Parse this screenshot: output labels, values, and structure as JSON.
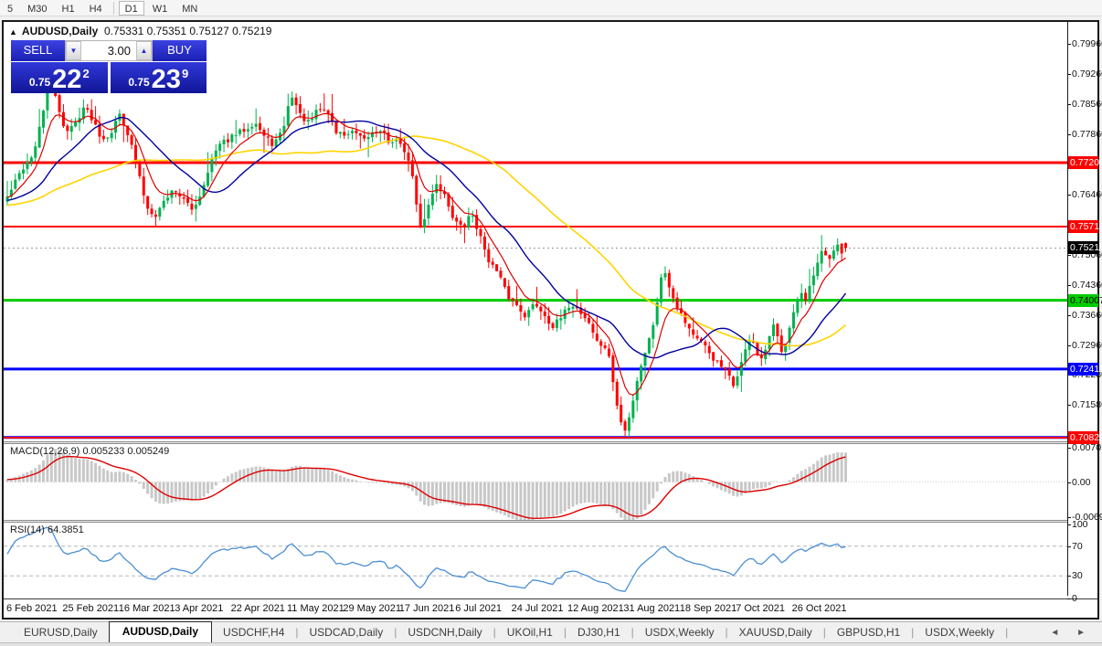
{
  "toolbar": {
    "timeframes": [
      {
        "label": "5",
        "active": false
      },
      {
        "label": "M30",
        "active": false
      },
      {
        "label": "H1",
        "active": false
      },
      {
        "label": "H4",
        "active": false
      },
      {
        "label": "D1",
        "active": true
      },
      {
        "label": "W1",
        "active": false
      },
      {
        "label": "MN",
        "active": false
      }
    ]
  },
  "chart_header": {
    "symbol": "AUDUSD,Daily",
    "ohlc": "0.75331 0.75351 0.75127 0.75219",
    "collapse_icon": "▲"
  },
  "trade_panel": {
    "sell_label": "SELL",
    "buy_label": "BUY",
    "volume": "3.00",
    "down_arrow": "▼",
    "up_arrow": "▲",
    "sell_price": {
      "small": "0.75",
      "big": "22",
      "sup": "2"
    },
    "buy_price": {
      "small": "0.75",
      "big": "23",
      "sup": "9"
    }
  },
  "chart_data": {
    "type": "candlestick",
    "title": "AUDUSD Daily",
    "colors": {
      "bull": "#00b14f",
      "bear": "#fe0000",
      "ma_fast": "#e00000",
      "ma_mid": "#0000a0",
      "ma_slow": "#ffd400",
      "macd_hist": "#c8c8c8",
      "macd_signal": "#dd0000",
      "rsi": "#4a8fd4"
    },
    "price_axis_range": [
      0.7042,
      0.8036
    ],
    "y_ticks": [
      "0.79960",
      "0.79260",
      "0.78560",
      "0.77860",
      "0.76460",
      "0.75060",
      "0.74360",
      "0.73660",
      "0.72960",
      "0.72280",
      "0.71580"
    ],
    "levels": [
      {
        "label": "0.77200",
        "price": 0.772,
        "color": "#ff0000",
        "text": "#ffffff",
        "lw": 3
      },
      {
        "label": "0.75716",
        "price": 0.75716,
        "color": "#ff0000",
        "text": "#ffffff",
        "lw": 2
      },
      {
        "label": "0.74007",
        "price": 0.74007,
        "color": "#00cc00",
        "text": "#000000",
        "lw": 3
      },
      {
        "label": "0.72411",
        "price": 0.72411,
        "color": "#0000ff",
        "text": "#ffffff",
        "lw": 3
      },
      {
        "label": "0.70826",
        "price": 0.70826,
        "color": "#0000ff",
        "text": "#ffffff",
        "lw": 3
      },
      {
        "label": "0.70820",
        "price": 0.7082,
        "color": "#ff0000",
        "text": "#ffffff",
        "lw": 2
      }
    ],
    "current_price": {
      "label": "0.75219",
      "price": 0.75219,
      "color": "#000000",
      "text": "#ffffff"
    },
    "last_candle": {
      "open": 0.75331,
      "high": 0.75351,
      "low": 0.75127,
      "close": 0.75219
    },
    "num_candles": 210,
    "price_waypoints_base": 186,
    "price_waypoints": [
      [
        0,
        0.764
      ],
      [
        3,
        0.77
      ],
      [
        6,
        0.7745
      ],
      [
        8,
        0.784
      ],
      [
        9,
        0.793
      ],
      [
        11,
        0.786
      ],
      [
        13,
        0.779
      ],
      [
        15,
        0.781
      ],
      [
        17,
        0.785
      ],
      [
        19,
        0.782
      ],
      [
        21,
        0.7775
      ],
      [
        23,
        0.779
      ],
      [
        25,
        0.7835
      ],
      [
        27,
        0.778
      ],
      [
        29,
        0.77
      ],
      [
        31,
        0.7615
      ],
      [
        33,
        0.76
      ],
      [
        35,
        0.7635
      ],
      [
        37,
        0.766
      ],
      [
        39,
        0.7635
      ],
      [
        41,
        0.761
      ],
      [
        43,
        0.765
      ],
      [
        45,
        0.772
      ],
      [
        47,
        0.776
      ],
      [
        50,
        0.778
      ],
      [
        53,
        0.78
      ],
      [
        55,
        0.7815
      ],
      [
        57,
        0.778
      ],
      [
        59,
        0.7762
      ],
      [
        61,
        0.779
      ],
      [
        63,
        0.788
      ],
      [
        65,
        0.783
      ],
      [
        67,
        0.781
      ],
      [
        69,
        0.7845
      ],
      [
        71,
        0.784
      ],
      [
        73,
        0.779
      ],
      [
        75,
        0.7785
      ],
      [
        77,
        0.779
      ],
      [
        79,
        0.7768
      ],
      [
        81,
        0.779
      ],
      [
        83,
        0.78
      ],
      [
        85,
        0.776
      ],
      [
        87,
        0.7775
      ],
      [
        89,
        0.772
      ],
      [
        90,
        0.769
      ],
      [
        91,
        0.7595
      ],
      [
        92,
        0.7565
      ],
      [
        94,
        0.764
      ],
      [
        95,
        0.7675
      ],
      [
        97,
        0.7645
      ],
      [
        99,
        0.759
      ],
      [
        101,
        0.7565
      ],
      [
        103,
        0.7605
      ],
      [
        105,
        0.7545
      ],
      [
        107,
        0.749
      ],
      [
        109,
        0.746
      ],
      [
        111,
        0.741
      ],
      [
        113,
        0.739
      ],
      [
        115,
        0.7365
      ],
      [
        117,
        0.7395
      ],
      [
        119,
        0.737
      ],
      [
        121,
        0.734
      ],
      [
        123,
        0.736
      ],
      [
        125,
        0.7395
      ],
      [
        127,
        0.7375
      ],
      [
        129,
        0.735
      ],
      [
        131,
        0.73
      ],
      [
        133,
        0.729
      ],
      [
        134,
        0.724
      ],
      [
        135,
        0.717
      ],
      [
        136,
        0.712
      ],
      [
        137,
        0.7096
      ],
      [
        138,
        0.713
      ],
      [
        139,
        0.718
      ],
      [
        140,
        0.723
      ],
      [
        141,
        0.7265
      ],
      [
        143,
        0.733
      ],
      [
        144,
        0.739
      ],
      [
        145,
        0.745
      ],
      [
        146,
        0.7467
      ],
      [
        147,
        0.743
      ],
      [
        148,
        0.74
      ],
      [
        149,
        0.738
      ],
      [
        151,
        0.734
      ],
      [
        153,
        0.731
      ],
      [
        155,
        0.729
      ],
      [
        157,
        0.726
      ],
      [
        159,
        0.724
      ],
      [
        160,
        0.7225
      ],
      [
        161,
        0.72
      ],
      [
        162,
        0.723
      ],
      [
        163,
        0.726
      ],
      [
        164,
        0.729
      ],
      [
        165,
        0.732
      ],
      [
        166,
        0.729
      ],
      [
        167,
        0.725
      ],
      [
        168,
        0.728
      ],
      [
        169,
        0.731
      ],
      [
        170,
        0.734
      ],
      [
        171,
        0.731
      ],
      [
        172,
        0.728
      ],
      [
        173,
        0.732
      ],
      [
        174,
        0.736
      ],
      [
        175,
        0.739
      ],
      [
        176,
        0.742
      ],
      [
        177,
        0.739
      ],
      [
        178,
        0.743
      ],
      [
        179,
        0.746
      ],
      [
        180,
        0.749
      ],
      [
        181,
        0.752
      ],
      [
        182,
        0.749
      ],
      [
        183,
        0.751
      ],
      [
        184,
        0.753
      ],
      [
        185,
        0.7505
      ],
      [
        186,
        0.75219
      ]
    ],
    "swing_low": 0.7086,
    "moving_averages": [
      {
        "period": 8,
        "kind": "ema"
      },
      {
        "period": 21,
        "kind": "sma"
      },
      {
        "period": 55,
        "kind": "sma"
      }
    ],
    "macd": {
      "label": "MACD(12,26,9) 0.005233 0.005249",
      "params": [
        12,
        26,
        9
      ],
      "axis_ticks": [
        "0.007015",
        "0.00",
        "-0.00692"
      ],
      "axis_values": [
        0.007015,
        0.0,
        -0.00692
      ],
      "range": [
        -0.00745,
        0.00745
      ]
    },
    "rsi": {
      "label": "RSI(14) 64.3851",
      "period": 14,
      "value": 64.3851,
      "axis_ticks": [
        "100",
        "70",
        "30",
        "0"
      ],
      "axis_values": [
        100,
        70,
        30,
        0
      ],
      "guides": [
        70,
        30
      ]
    },
    "x_labels": [
      "6 Feb 2021",
      "25 Feb 2021",
      "16 Mar 2021",
      "3 Apr 2021",
      "22 Apr 2021",
      "11 May 2021",
      "29 May 2021",
      "17 Jun 2021",
      "6 Jul 2021",
      "24 Jul 2021",
      "12 Aug 2021",
      "31 Aug 2021",
      "18 Sep 2021",
      "7 Oct 2021",
      "26 Oct 2021"
    ],
    "legend_position": "none",
    "grid": false
  },
  "tabs": {
    "items": [
      {
        "label": "EURUSD,Daily",
        "active": false
      },
      {
        "label": "AUDUSD,Daily",
        "active": true
      },
      {
        "label": "USDCHF,H4",
        "active": false
      },
      {
        "label": "USDCAD,Daily",
        "active": false
      },
      {
        "label": "USDCNH,Daily",
        "active": false
      },
      {
        "label": "UKOil,H1",
        "active": false
      },
      {
        "label": "DJ30,H1",
        "active": false
      },
      {
        "label": "USDX,Weekly",
        "active": false
      },
      {
        "label": "XAUUSD,Daily",
        "active": false
      },
      {
        "label": "GBPUSD,H1",
        "active": false
      },
      {
        "label": "USDX,Weekly",
        "active": false
      }
    ],
    "scroll_left": "◄",
    "scroll_right": "►"
  }
}
